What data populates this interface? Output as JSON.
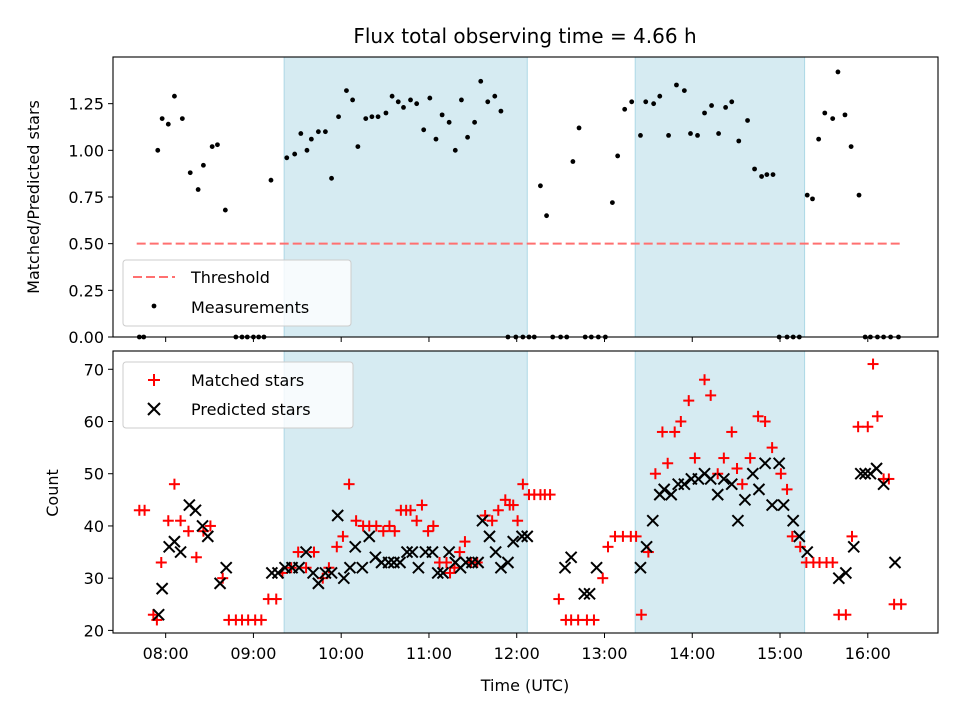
{
  "chart_data": [
    {
      "type": "scatter",
      "title": "Flux total observing time = 4.66 h",
      "xlabel": "",
      "ylabel": "Matched/Predicted stars",
      "xlim": [
        7.4,
        16.8
      ],
      "ylim": [
        0.0,
        1.5
      ],
      "yticks": [
        0.0,
        0.25,
        0.5,
        0.75,
        1.0,
        1.25
      ],
      "ytick_labels": [
        "0.00",
        "0.25",
        "0.50",
        "0.75",
        "1.00",
        "1.25"
      ],
      "legend_position": "lower-left",
      "shaded_intervals": [
        [
          9.35,
          12.12
        ],
        [
          13.35,
          15.28
        ]
      ],
      "threshold": {
        "name": "Threshold",
        "value": 0.5,
        "x_start": 7.67,
        "x_end": 16.38,
        "color": "#ff7070"
      },
      "series": [
        {
          "name": "Measurements",
          "color": "#000000",
          "x": [
            7.7,
            7.75,
            7.91,
            7.96,
            8.03,
            8.1,
            8.19,
            8.28,
            8.37,
            8.43,
            8.53,
            8.59,
            8.68,
            8.8,
            8.87,
            8.93,
            9.0,
            9.06,
            9.12,
            9.2,
            9.38,
            9.47,
            9.54,
            9.61,
            9.66,
            9.74,
            9.82,
            9.89,
            9.97,
            10.06,
            10.13,
            10.19,
            10.28,
            10.35,
            10.42,
            10.51,
            10.58,
            10.65,
            10.71,
            10.79,
            10.86,
            10.94,
            11.01,
            11.08,
            11.15,
            11.23,
            11.3,
            11.37,
            11.44,
            11.52,
            11.59,
            11.67,
            11.75,
            11.82,
            11.9,
            11.99,
            12.07,
            12.14,
            12.2,
            12.27,
            12.34,
            12.41,
            12.5,
            12.57,
            12.64,
            12.71,
            12.78,
            12.85,
            12.93,
            13.01,
            13.09,
            13.15,
            13.23,
            13.31,
            13.41,
            13.47,
            13.56,
            13.63,
            13.73,
            13.82,
            13.91,
            13.98,
            14.06,
            14.14,
            14.22,
            14.3,
            14.38,
            14.45,
            14.53,
            14.63,
            14.71,
            14.79,
            14.85,
            14.92,
            14.99,
            15.08,
            15.15,
            15.22,
            15.31,
            15.37,
            15.44,
            15.51,
            15.6,
            15.66,
            15.74,
            15.81,
            15.9,
            15.97,
            16.03,
            16.11,
            16.18,
            16.26,
            16.35
          ],
          "y": [
            0.0,
            0.0,
            1.0,
            1.17,
            1.14,
            1.29,
            1.17,
            0.88,
            0.79,
            0.92,
            1.02,
            1.03,
            0.68,
            0.0,
            0.0,
            0.0,
            0.0,
            0.0,
            0.0,
            0.84,
            0.96,
            0.98,
            1.09,
            1.0,
            1.06,
            1.1,
            1.1,
            0.85,
            1.18,
            1.32,
            1.27,
            1.02,
            1.17,
            1.18,
            1.18,
            1.2,
            1.29,
            1.26,
            1.23,
            1.27,
            1.25,
            1.11,
            1.28,
            1.06,
            1.19,
            1.15,
            1.0,
            1.27,
            1.07,
            1.15,
            1.37,
            1.26,
            1.29,
            1.21,
            0.0,
            0.0,
            0.0,
            0.0,
            0.0,
            0.81,
            0.65,
            0.0,
            0.0,
            0.0,
            0.94,
            1.12,
            0.0,
            0.0,
            0.0,
            0.0,
            0.72,
            0.97,
            1.22,
            1.26,
            1.08,
            1.26,
            1.25,
            1.29,
            1.08,
            1.35,
            1.32,
            1.09,
            1.08,
            1.2,
            1.24,
            1.09,
            1.23,
            1.26,
            1.05,
            1.16,
            0.9,
            0.86,
            0.87,
            0.87,
            0.0,
            0.0,
            0.0,
            0.0,
            0.76,
            0.74,
            1.06,
            1.2,
            1.17,
            1.42,
            1.19,
            1.02,
            0.76,
            0.0,
            0.0,
            0.0,
            0.0,
            0.0,
            0.0
          ]
        }
      ],
      "legend": [
        "Threshold",
        "Measurements"
      ]
    },
    {
      "type": "scatter",
      "title": "",
      "xlabel": "Time (UTC)",
      "ylabel": "Count",
      "xlim": [
        7.4,
        16.8
      ],
      "ylim": [
        19.5,
        73.5
      ],
      "xticks": [
        8,
        9,
        10,
        11,
        12,
        13,
        14,
        15,
        16
      ],
      "xtick_labels": [
        "08:00",
        "09:00",
        "10:00",
        "11:00",
        "12:00",
        "13:00",
        "14:00",
        "15:00",
        "16:00"
      ],
      "yticks": [
        20,
        30,
        40,
        50,
        60,
        70
      ],
      "ytick_labels": [
        "20",
        "30",
        "40",
        "50",
        "60",
        "70"
      ],
      "legend_position": "top-left",
      "shaded_intervals": [
        [
          9.35,
          12.12
        ],
        [
          13.35,
          15.28
        ]
      ],
      "series": [
        {
          "name": "Matched stars",
          "marker": "plus",
          "color": "#ff0000",
          "x": [
            7.7,
            7.76,
            7.86,
            7.9,
            7.95,
            8.03,
            8.1,
            8.17,
            8.26,
            8.35,
            8.43,
            8.51,
            8.65,
            8.72,
            8.8,
            8.87,
            8.94,
            9.02,
            9.09,
            9.17,
            9.26,
            9.33,
            9.43,
            9.51,
            9.6,
            9.69,
            9.79,
            9.86,
            9.95,
            10.02,
            10.09,
            10.17,
            10.25,
            10.32,
            10.4,
            10.48,
            10.55,
            10.61,
            10.68,
            10.74,
            10.79,
            10.86,
            10.92,
            10.99,
            11.05,
            11.12,
            11.2,
            11.24,
            11.29,
            11.35,
            11.41,
            11.48,
            11.55,
            11.64,
            11.72,
            11.79,
            11.87,
            11.92,
            11.96,
            12.01,
            12.07,
            12.14,
            12.2,
            12.27,
            12.32,
            12.38,
            12.48,
            12.56,
            12.62,
            12.7,
            12.8,
            12.88,
            12.98,
            13.04,
            13.12,
            13.21,
            13.3,
            13.36,
            13.42,
            13.5,
            13.58,
            13.66,
            13.72,
            13.8,
            13.87,
            13.96,
            14.03,
            14.14,
            14.21,
            14.29,
            14.36,
            14.45,
            14.51,
            14.57,
            14.66,
            14.75,
            14.83,
            14.91,
            15.01,
            15.08,
            15.14,
            15.23,
            15.3,
            15.38,
            15.45,
            15.53,
            15.6,
            15.67,
            15.75,
            15.82,
            15.89,
            16.0,
            16.06,
            16.11,
            16.18,
            16.24,
            16.3,
            16.38
          ],
          "y": [
            43,
            43,
            23,
            22,
            33,
            41,
            48,
            41,
            39,
            34,
            39,
            40,
            30,
            22,
            22,
            22,
            22,
            22,
            22,
            26,
            26,
            31,
            32,
            35,
            32,
            35,
            30,
            32,
            36,
            38,
            48,
            41,
            40,
            40,
            40,
            39,
            40,
            39,
            43,
            43,
            43,
            41,
            44,
            39,
            40,
            33,
            33,
            31,
            32,
            35,
            37,
            33,
            33,
            42,
            41,
            43,
            45,
            44,
            44,
            41,
            48,
            46,
            46,
            46,
            46,
            46,
            26,
            22,
            22,
            22,
            22,
            22,
            30,
            36,
            38,
            38,
            38,
            38,
            23,
            35,
            50,
            58,
            52,
            58,
            60,
            64,
            53,
            68,
            65,
            50,
            53,
            58,
            51,
            48,
            53,
            61,
            60,
            55,
            50,
            47,
            38,
            36,
            33,
            33,
            33,
            33,
            33,
            23,
            23,
            38,
            59,
            59,
            71,
            61,
            49,
            49,
            25,
            25
          ]
        },
        {
          "name": "Predicted stars",
          "marker": "x",
          "color": "#000000",
          "x": [
            7.92,
            7.96,
            8.04,
            8.1,
            8.17,
            8.27,
            8.34,
            8.42,
            8.48,
            8.62,
            8.69,
            9.21,
            9.28,
            9.36,
            9.44,
            9.52,
            9.6,
            9.68,
            9.74,
            9.82,
            9.89,
            9.96,
            10.03,
            10.1,
            10.16,
            10.24,
            10.32,
            10.39,
            10.46,
            10.54,
            10.6,
            10.67,
            10.75,
            10.81,
            10.88,
            10.96,
            11.04,
            11.1,
            11.16,
            11.23,
            11.3,
            11.36,
            11.42,
            11.49,
            11.56,
            11.61,
            11.69,
            11.76,
            11.82,
            11.9,
            11.96,
            12.06,
            12.12,
            12.55,
            12.62,
            12.77,
            12.83,
            12.91,
            13.41,
            13.48,
            13.55,
            13.63,
            13.68,
            13.76,
            13.84,
            13.91,
            13.99,
            14.07,
            14.14,
            14.21,
            14.29,
            14.36,
            14.45,
            14.52,
            14.6,
            14.69,
            14.76,
            14.83,
            14.91,
            14.99,
            15.04,
            15.15,
            15.22,
            15.31,
            15.67,
            15.75,
            15.84,
            15.92,
            15.97,
            16.03,
            16.1,
            16.18,
            16.31
          ],
          "y": [
            23,
            28,
            36,
            37,
            35,
            44,
            43,
            40,
            38,
            29,
            32,
            31,
            31,
            32,
            32,
            32,
            35,
            31,
            29,
            31,
            31,
            42,
            30,
            32,
            36,
            32,
            38,
            34,
            33,
            33,
            33,
            33,
            35,
            35,
            32,
            35,
            35,
            31,
            31,
            35,
            33,
            32,
            33,
            33,
            33,
            41,
            38,
            35,
            32,
            33,
            37,
            38,
            38,
            32,
            34,
            27,
            27,
            32,
            32,
            36,
            41,
            46,
            47,
            46,
            48,
            48,
            49,
            49,
            50,
            49,
            46,
            49,
            48,
            41,
            45,
            50,
            47,
            52,
            44,
            52,
            44,
            41,
            38,
            35,
            30,
            31,
            36,
            50,
            50,
            50,
            51,
            48,
            33
          ]
        }
      ],
      "legend": [
        "Matched stars",
        "Predicted stars"
      ]
    }
  ]
}
